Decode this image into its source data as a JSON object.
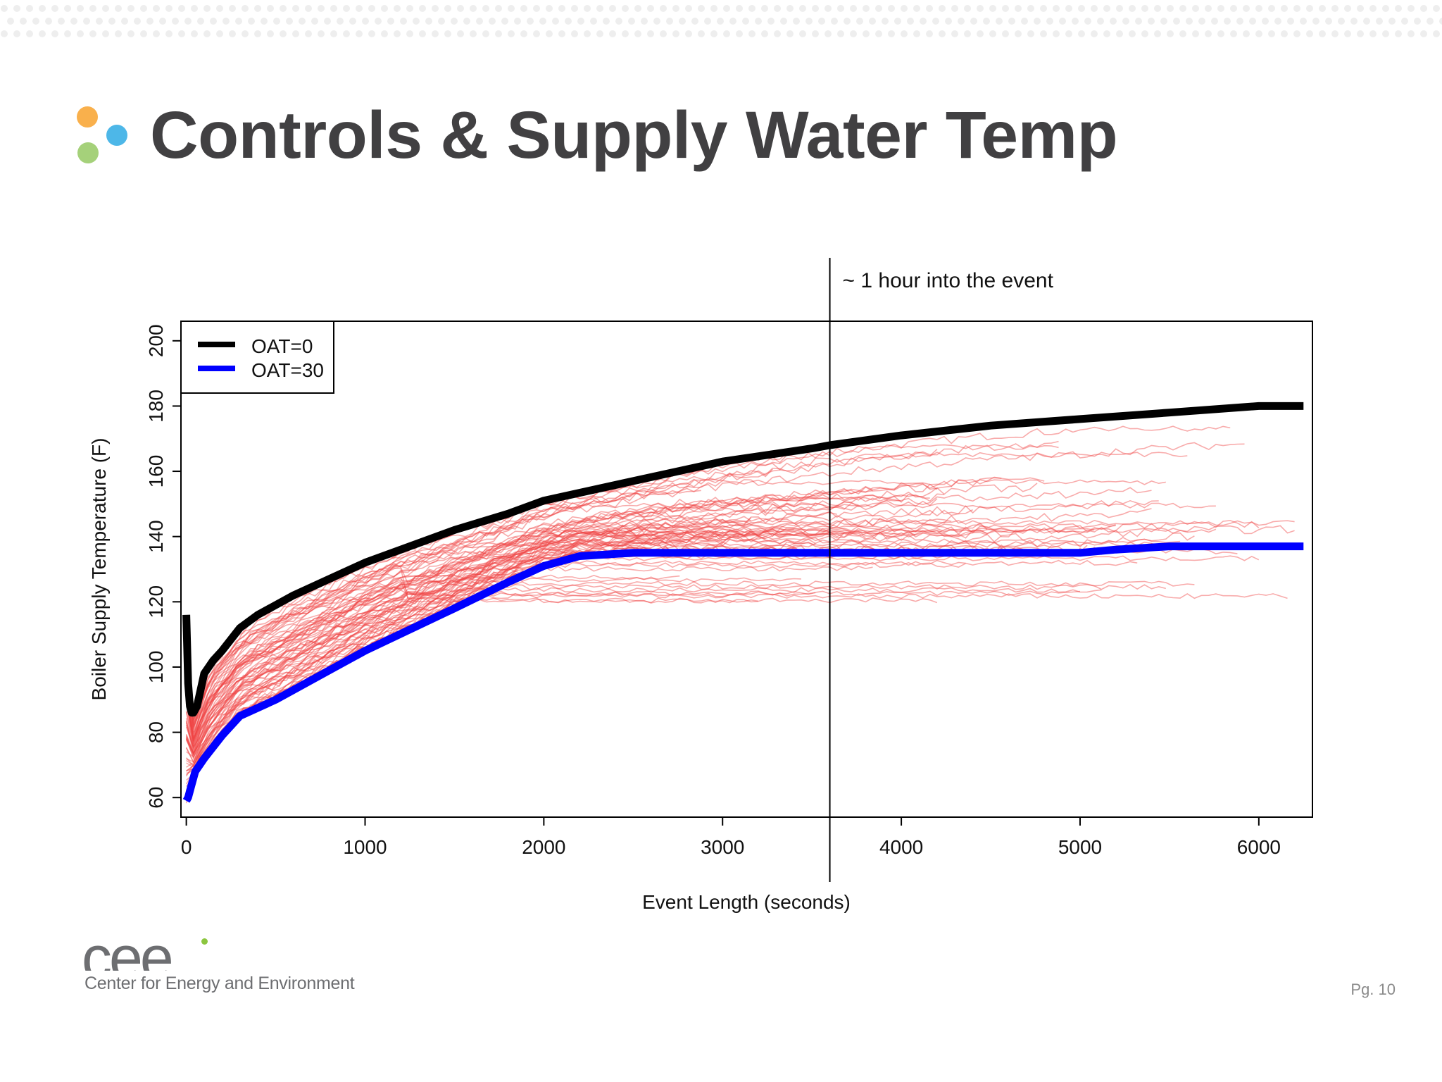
{
  "slide": {
    "title": "Controls & Supply Water Temp",
    "page_number": "Pg. 10",
    "bullet_colors": [
      "#f9b04c",
      "#4db7e8",
      "#a5d17a"
    ]
  },
  "logo": {
    "mark": "cee",
    "subtitle": "Center for Energy and Environment",
    "accent_color": "#8cc63f"
  },
  "chart_data": {
    "type": "line",
    "title": "",
    "xlabel": "Event Length (seconds)",
    "ylabel": "Boiler Supply Temperature (F)",
    "xlim": [
      -30,
      6300
    ],
    "ylim": [
      54,
      206
    ],
    "x_ticks": [
      0,
      1000,
      2000,
      3000,
      4000,
      5000,
      6000
    ],
    "y_ticks": [
      60,
      80,
      100,
      120,
      140,
      160,
      180,
      200
    ],
    "legend": {
      "placement": "top-left",
      "entries": [
        {
          "label": "OAT=0",
          "color": "#000000"
        },
        {
          "label": "OAT=30",
          "color": "#0000ff"
        }
      ]
    },
    "annotation": {
      "text": "~ 1 hour into the event",
      "x": 3600
    },
    "series": [
      {
        "name": "OAT=0",
        "color": "#000000",
        "x": [
          0,
          10,
          20,
          30,
          40,
          60,
          80,
          100,
          150,
          200,
          300,
          400,
          600,
          800,
          1000,
          1200,
          1500,
          1800,
          2000,
          2500,
          3000,
          3500,
          3600,
          4000,
          4500,
          5000,
          5500,
          6000,
          6250
        ],
        "y": [
          116,
          95,
          88,
          86,
          86,
          88,
          93,
          98,
          102,
          105,
          112,
          116,
          122,
          127,
          132,
          136,
          142,
          147,
          151,
          157,
          163,
          167,
          168,
          171,
          174,
          176,
          178,
          180,
          180
        ]
      },
      {
        "name": "OAT=30",
        "color": "#0000ff",
        "x": [
          0,
          10,
          20,
          30,
          50,
          100,
          200,
          300,
          500,
          800,
          1000,
          1500,
          1800,
          2000,
          2200,
          2500,
          3000,
          3600,
          4000,
          4500,
          5000,
          5200,
          5500,
          6000,
          6250
        ],
        "y": [
          59,
          60,
          62,
          64,
          68,
          72,
          79,
          85,
          90,
          99,
          105,
          118,
          126,
          131,
          134,
          135,
          135,
          135,
          135,
          135,
          135,
          136,
          137,
          137,
          137
        ]
      }
    ],
    "individual_events_color": "#ef4444",
    "individual_events_range": {
      "low": [
        120,
        130
      ],
      "high": [
        170,
        180
      ]
    }
  }
}
